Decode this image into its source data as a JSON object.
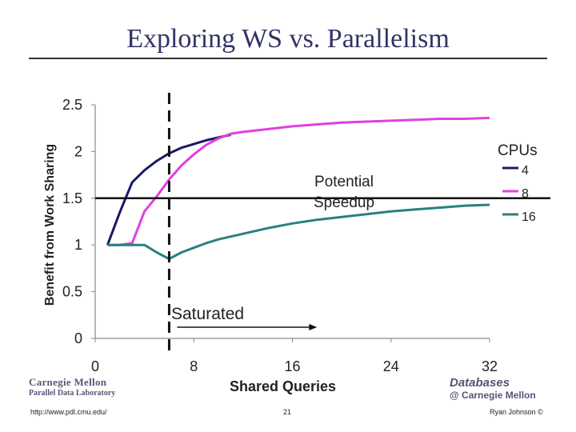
{
  "slide": {
    "title": "Exploring WS vs. Parallelism",
    "footer_url": "http://www.pdl.cmu.edu/",
    "page_number": "21",
    "author": "Ryan Johnson ©",
    "logo_left_line1": "Carnegie Mellon",
    "logo_left_line2": "Parallel Data Laboratory",
    "logo_right_line1": "Databases",
    "logo_right_line2": "@ Carnegie Mellon"
  },
  "chart_data": {
    "type": "line",
    "xlabel": "Shared Queries",
    "ylabel": "Benefit from Work Sharing",
    "xlim": [
      0,
      32
    ],
    "ylim": [
      0,
      2.5
    ],
    "x_ticks": [
      "0",
      "8",
      "16",
      "24",
      "32"
    ],
    "y_ticks": [
      "0",
      "0.5",
      "1",
      "1.5",
      "2",
      "2.5"
    ],
    "grid": false,
    "legend": {
      "title": "CPUs",
      "position": "right"
    },
    "series": [
      {
        "name": "4",
        "color": "#1a1a66",
        "x": [
          1,
          2,
          3,
          4,
          5,
          6,
          7,
          8,
          9,
          10,
          11
        ],
        "y": [
          1.0,
          1.35,
          1.67,
          1.8,
          1.9,
          1.98,
          2.04,
          2.08,
          2.12,
          2.15,
          2.18
        ]
      },
      {
        "name": "8",
        "color": "#e040e0",
        "x": [
          1,
          2,
          3,
          4,
          5,
          6,
          7,
          8,
          9,
          10,
          11,
          12,
          14,
          16,
          18,
          20,
          22,
          24,
          26,
          28,
          30,
          32
        ],
        "y": [
          1.0,
          1.0,
          1.02,
          1.36,
          1.52,
          1.7,
          1.85,
          1.97,
          2.07,
          2.14,
          2.19,
          2.21,
          2.24,
          2.27,
          2.29,
          2.31,
          2.32,
          2.33,
          2.34,
          2.35,
          2.35,
          2.36
        ]
      },
      {
        "name": "16",
        "color": "#2a8080",
        "x": [
          1,
          2,
          3,
          4,
          5,
          6,
          7,
          8,
          9,
          10,
          12,
          14,
          16,
          18,
          20,
          22,
          24,
          26,
          28,
          30,
          32
        ],
        "y": [
          1.0,
          1.0,
          1.0,
          1.0,
          0.92,
          0.85,
          0.92,
          0.97,
          1.02,
          1.06,
          1.12,
          1.18,
          1.23,
          1.27,
          1.3,
          1.33,
          1.36,
          1.38,
          1.4,
          1.42,
          1.43
        ]
      }
    ],
    "reference_line": {
      "y": 1.5,
      "label": "Potential Speedup"
    },
    "saturation_marker": {
      "x": 6,
      "label": "Saturated",
      "arrow_to_x": 18
    }
  }
}
